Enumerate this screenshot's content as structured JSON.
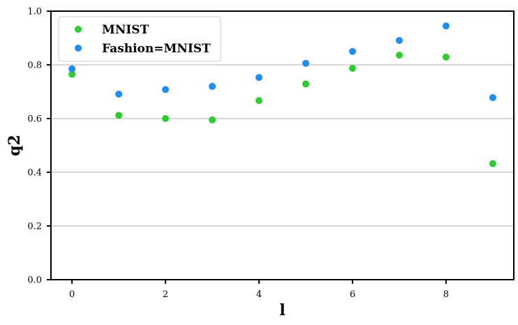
{
  "chart_data": {
    "type": "scatter",
    "xlabel": "l",
    "ylabel": "q2",
    "xlim": [
      -0.45,
      9.45
    ],
    "ylim": [
      0.0,
      1.0
    ],
    "xticks": [
      0,
      2,
      4,
      6,
      8
    ],
    "xtick_labels": [
      "0",
      "2",
      "4",
      "6",
      "8"
    ],
    "yticks": [
      0.0,
      0.2,
      0.4,
      0.6,
      0.8,
      1.0
    ],
    "ytick_labels": [
      "0.0",
      "0.2",
      "0.4",
      "0.6",
      "0.8",
      "1.0"
    ],
    "grid": "horizontal",
    "legend_position": "top-left",
    "x": [
      0,
      1,
      2,
      3,
      4,
      5,
      6,
      7,
      8,
      9
    ],
    "series": [
      {
        "name": "MNIST",
        "color": "#2ecc2e",
        "values": [
          0.765,
          0.612,
          0.6,
          0.595,
          0.667,
          0.729,
          0.787,
          0.836,
          0.829,
          0.432
        ]
      },
      {
        "name": "Fashion=MNIST",
        "color": "#1f8ef1",
        "values": [
          0.785,
          0.691,
          0.708,
          0.72,
          0.753,
          0.806,
          0.85,
          0.891,
          0.945,
          0.678
        ]
      }
    ]
  }
}
